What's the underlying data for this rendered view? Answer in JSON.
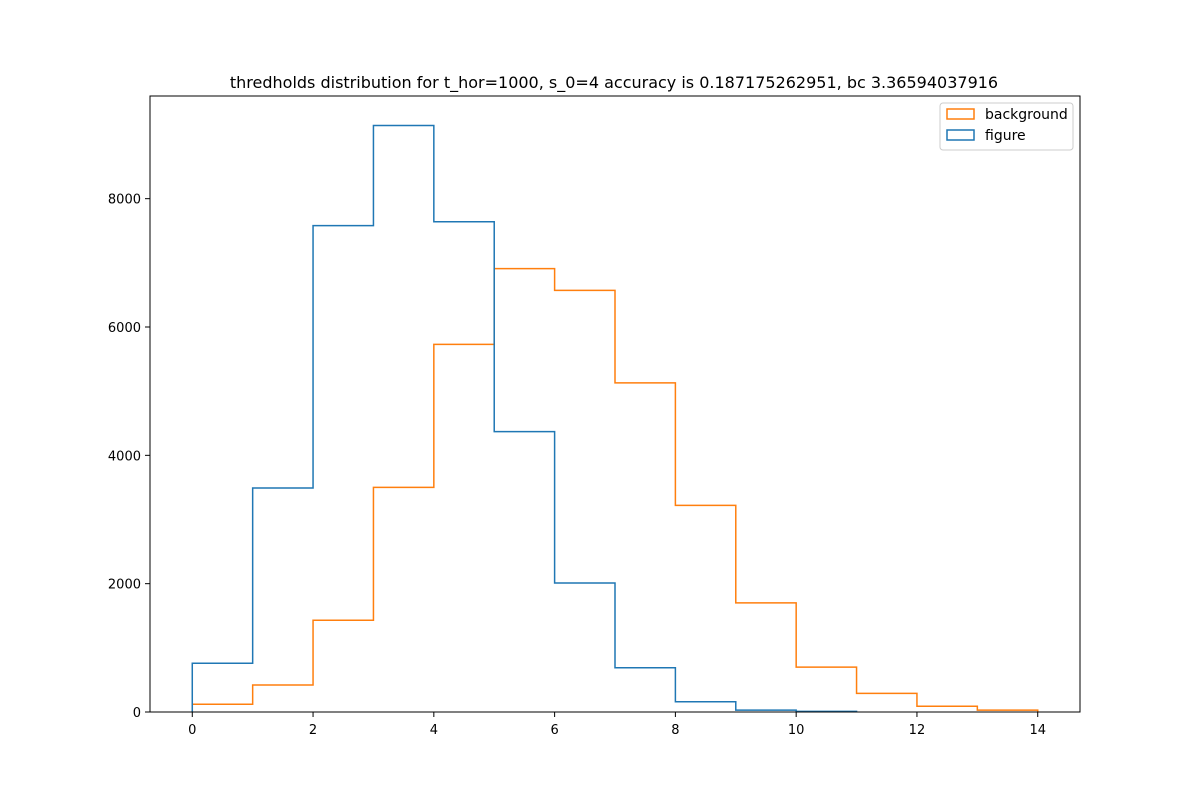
{
  "chart_data": {
    "type": "histogram-step",
    "title": "thredholds distribution for t_hor=1000, s_0=4 accuracy is 0.187175262951, bc 3.36594037916",
    "xlabel": "",
    "ylabel": "",
    "xlim": [
      -0.7,
      14.7
    ],
    "ylim": [
      0,
      9600
    ],
    "x_ticks": [
      0,
      2,
      4,
      6,
      8,
      10,
      12,
      14
    ],
    "y_ticks": [
      0,
      2000,
      4000,
      6000,
      8000
    ],
    "grid": false,
    "legend_position": "top-right",
    "series": [
      {
        "name": "background",
        "color": "#ff7f0e",
        "bin_edges": [
          0,
          1,
          2,
          3,
          4,
          5,
          6,
          7,
          8,
          9,
          10,
          11,
          12,
          13,
          14
        ],
        "counts": [
          120,
          420,
          1430,
          3500,
          5730,
          6910,
          6570,
          5130,
          3220,
          1700,
          700,
          290,
          90,
          30
        ]
      },
      {
        "name": "figure",
        "color": "#1f77b4",
        "bin_edges": [
          0,
          1,
          2,
          3,
          4,
          5,
          6,
          7,
          8,
          9,
          10,
          11
        ],
        "counts": [
          760,
          3490,
          7580,
          9140,
          7640,
          4370,
          2010,
          690,
          160,
          30,
          10
        ]
      }
    ]
  }
}
